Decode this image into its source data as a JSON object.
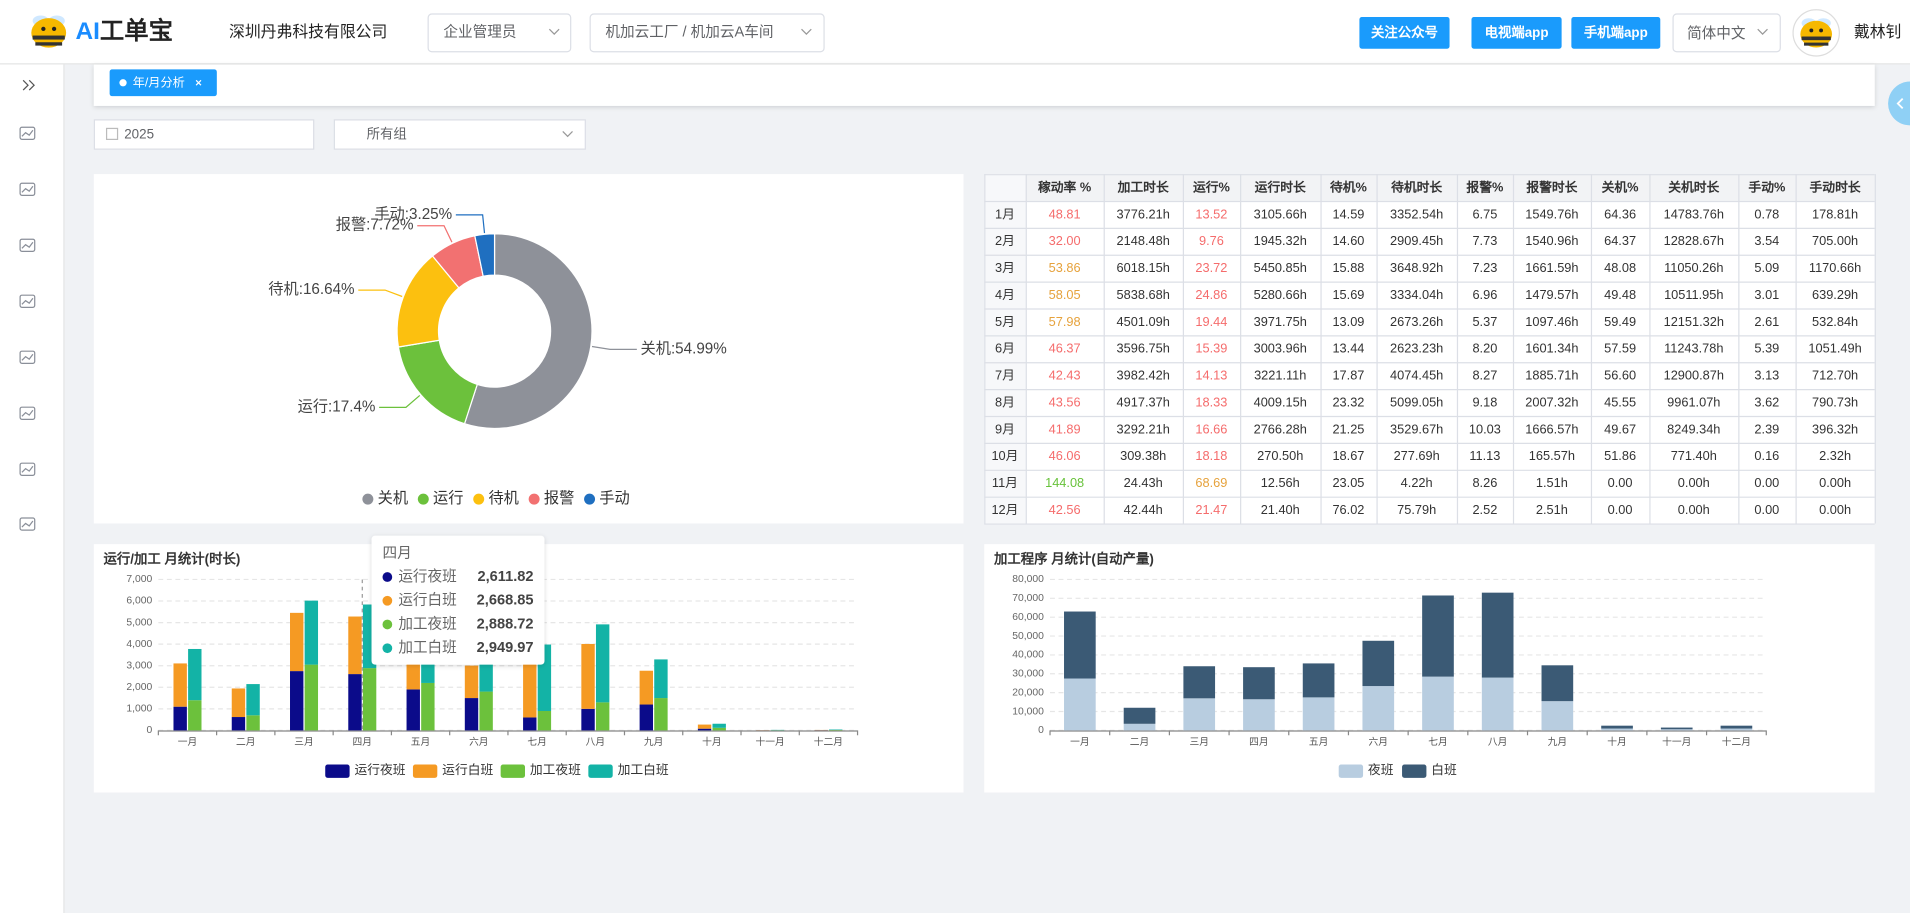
{
  "header": {
    "logo": [
      "AI",
      "工单宝"
    ],
    "company": "深圳丹弗科技有限公司",
    "role": "企业管理员",
    "workshop": "机加云工厂 / 机加云A车间",
    "buttons": [
      "关注公众号",
      "电视端app",
      "手机端app"
    ],
    "language": "简体中文",
    "user": "戴林钊"
  },
  "tabs": [
    "年/月分析"
  ],
  "filters": {
    "year": "2025",
    "group": "所有组"
  },
  "table": {
    "header": [
      "稼动率 %",
      "加工时长",
      "运行%",
      "运行时长",
      "待机%",
      "待机时长",
      "报警%",
      "报警时长",
      "关机%",
      "关机时长",
      "手动%",
      "手动时长"
    ],
    "rows": [
      [
        "1月",
        "48.81",
        "3776.21h",
        "13.52",
        "3105.66h",
        "14.59",
        "3352.54h",
        "6.75",
        "1549.76h",
        "64.36",
        "14783.76h",
        "0.78",
        "178.81h"
      ],
      [
        "2月",
        "32.00",
        "2148.48h",
        "9.76",
        "1945.32h",
        "14.60",
        "2909.45h",
        "7.73",
        "1540.96h",
        "64.37",
        "12828.67h",
        "3.54",
        "705.00h"
      ],
      [
        "3月",
        "53.86",
        "6018.15h",
        "23.72",
        "5450.85h",
        "15.88",
        "3648.92h",
        "7.23",
        "1661.59h",
        "48.08",
        "11050.26h",
        "5.09",
        "1170.66h"
      ],
      [
        "4月",
        "58.05",
        "5838.68h",
        "24.86",
        "5280.66h",
        "15.69",
        "3334.04h",
        "6.96",
        "1479.57h",
        "49.48",
        "10511.95h",
        "3.01",
        "639.29h"
      ],
      [
        "5月",
        "57.98",
        "4501.09h",
        "19.44",
        "3971.75h",
        "13.09",
        "2673.26h",
        "5.37",
        "1097.46h",
        "59.49",
        "12151.32h",
        "2.61",
        "532.84h"
      ],
      [
        "6月",
        "46.37",
        "3596.75h",
        "15.39",
        "3003.96h",
        "13.44",
        "2623.23h",
        "8.20",
        "1601.34h",
        "57.59",
        "11243.78h",
        "5.39",
        "1051.49h"
      ],
      [
        "7月",
        "42.43",
        "3982.42h",
        "14.13",
        "3221.11h",
        "17.87",
        "4074.45h",
        "8.27",
        "1885.71h",
        "56.60",
        "12900.87h",
        "3.13",
        "712.70h"
      ],
      [
        "8月",
        "43.56",
        "4917.37h",
        "18.33",
        "4009.15h",
        "23.32",
        "5099.05h",
        "9.18",
        "2007.32h",
        "45.55",
        "9961.07h",
        "3.62",
        "790.73h"
      ],
      [
        "9月",
        "41.89",
        "3292.21h",
        "16.66",
        "2766.28h",
        "21.25",
        "3529.67h",
        "10.03",
        "1666.57h",
        "49.67",
        "8249.34h",
        "2.39",
        "396.32h"
      ],
      [
        "10月",
        "46.06",
        "309.38h",
        "18.18",
        "270.50h",
        "18.67",
        "277.69h",
        "11.13",
        "165.57h",
        "51.86",
        "771.40h",
        "0.16",
        "2.32h"
      ],
      [
        "11月",
        "144.08",
        "24.43h",
        "68.69",
        "12.56h",
        "23.05",
        "4.22h",
        "8.26",
        "1.51h",
        "0.00",
        "0.00h",
        "0.00",
        "0.00h"
      ],
      [
        "12月",
        "42.56",
        "42.44h",
        "21.47",
        "21.40h",
        "76.02",
        "75.79h",
        "2.52",
        "2.51h",
        "0.00",
        "0.00h",
        "0.00",
        "0.00h"
      ]
    ],
    "rate_colors": [
      "#f56c6c",
      "#f56c6c",
      "#e6a23c",
      "#e6a23c",
      "#e6a23c",
      "#f56c6c",
      "#f56c6c",
      "#f56c6c",
      "#f56c6c",
      "#f56c6c",
      "#67c23a",
      "#f56c6c"
    ],
    "run_colors": [
      "#f56c6c",
      "#f56c6c",
      "#f56c6c",
      "#f56c6c",
      "#f56c6c",
      "#f56c6c",
      "#f56c6c",
      "#f56c6c",
      "#f56c6c",
      "#f56c6c",
      "#e6a23c",
      "#f56c6c"
    ]
  },
  "chart_data": [
    {
      "type": "pie",
      "categories": [
        "关机",
        "运行",
        "待机",
        "报警",
        "手动"
      ],
      "values": [
        54.99,
        17.4,
        16.64,
        7.72,
        3.25
      ],
      "value_labels": [
        "关机:54.99%",
        "运行:17.4%",
        "待机:16.64%",
        "报警:7.72%",
        "手动:3.25%"
      ],
      "colors": [
        "#8e9199",
        "#6cc13c",
        "#fcc00f",
        "#f27171",
        "#1f6fc0"
      ],
      "legend": "bottom"
    },
    {
      "type": "bar",
      "title": "运行/加工 月统计(时长)",
      "categories": [
        "一月",
        "二月",
        "三月",
        "四月",
        "五月",
        "六月",
        "七月",
        "八月",
        "九月",
        "十月",
        "十一月",
        "十二月"
      ],
      "series": [
        {
          "name": "运行夜班",
          "color": "#0b0b8a",
          "stack": 0,
          "values": [
            1100,
            620,
            2750,
            2611.82,
            1900,
            1500,
            600,
            1000,
            1200,
            80,
            5,
            10
          ]
        },
        {
          "name": "运行白班",
          "color": "#f59a23",
          "stack": 0,
          "values": [
            2006,
            1325,
            2701,
            2668.85,
            2072,
            1504,
            2621,
            3009,
            1567,
            190,
            8,
            11
          ]
        },
        {
          "name": "加工夜班",
          "color": "#6cc13c",
          "stack": 1,
          "values": [
            1400,
            700,
            3050,
            2888.72,
            2200,
            1800,
            900,
            1300,
            1500,
            120,
            10,
            20
          ]
        },
        {
          "name": "加工白班",
          "color": "#13b3a6",
          "stack": 1,
          "values": [
            2376,
            1448,
            2968,
            2949.97,
            2301,
            1797,
            3082,
            3617,
            1792,
            189,
            14,
            22
          ]
        }
      ],
      "ylim": [
        0,
        7000
      ],
      "yticks": [
        0,
        {
          "value": 1000,
          "label": "1,000"
        },
        {
          "value": 2000,
          "label": "2,000"
        },
        {
          "value": 3000,
          "label": "3,000"
        },
        {
          "value": 4000,
          "label": "4,000"
        },
        {
          "value": 5000,
          "label": "5,000"
        },
        {
          "value": 6000,
          "label": "6,000"
        },
        {
          "value": 7000,
          "label": "7,000"
        }
      ],
      "grid": true,
      "legend": "bottom",
      "tooltip": {
        "title": "四月",
        "value_labels": [
          "2,611.82",
          "2,668.85",
          "2,888.72",
          "2,949.97"
        ]
      }
    },
    {
      "type": "bar",
      "title": "加工程序 月统计(自动产量)",
      "categories": [
        "一月",
        "二月",
        "三月",
        "四月",
        "五月",
        "六月",
        "七月",
        "八月",
        "九月",
        "十月",
        "十一月",
        "十二月"
      ],
      "series": [
        {
          "name": "夜班",
          "color": "#b8cde0",
          "stack": 0,
          "values": [
            27500,
            3500,
            17000,
            16500,
            17500,
            23500,
            28500,
            28000,
            15500,
            1000,
            600,
            1000
          ]
        },
        {
          "name": "白班",
          "color": "#3b5a75",
          "stack": 0,
          "values": [
            35500,
            8500,
            17000,
            17000,
            18000,
            24000,
            43000,
            45000,
            19000,
            1500,
            900,
            1500
          ]
        }
      ],
      "ylim": [
        0,
        80000
      ],
      "yticks": [
        0,
        {
          "value": 10000,
          "label": "10,000"
        },
        {
          "value": 20000,
          "label": "20,000"
        },
        {
          "value": 30000,
          "label": "30,000"
        },
        {
          "value": 40000,
          "label": "40,000"
        },
        {
          "value": 50000,
          "label": "50,000"
        },
        {
          "value": 60000,
          "label": "60,000"
        },
        {
          "value": 70000,
          "label": "70,000"
        },
        {
          "value": 80000,
          "label": "80,000"
        }
      ],
      "grid": true,
      "legend": "bottom"
    }
  ]
}
